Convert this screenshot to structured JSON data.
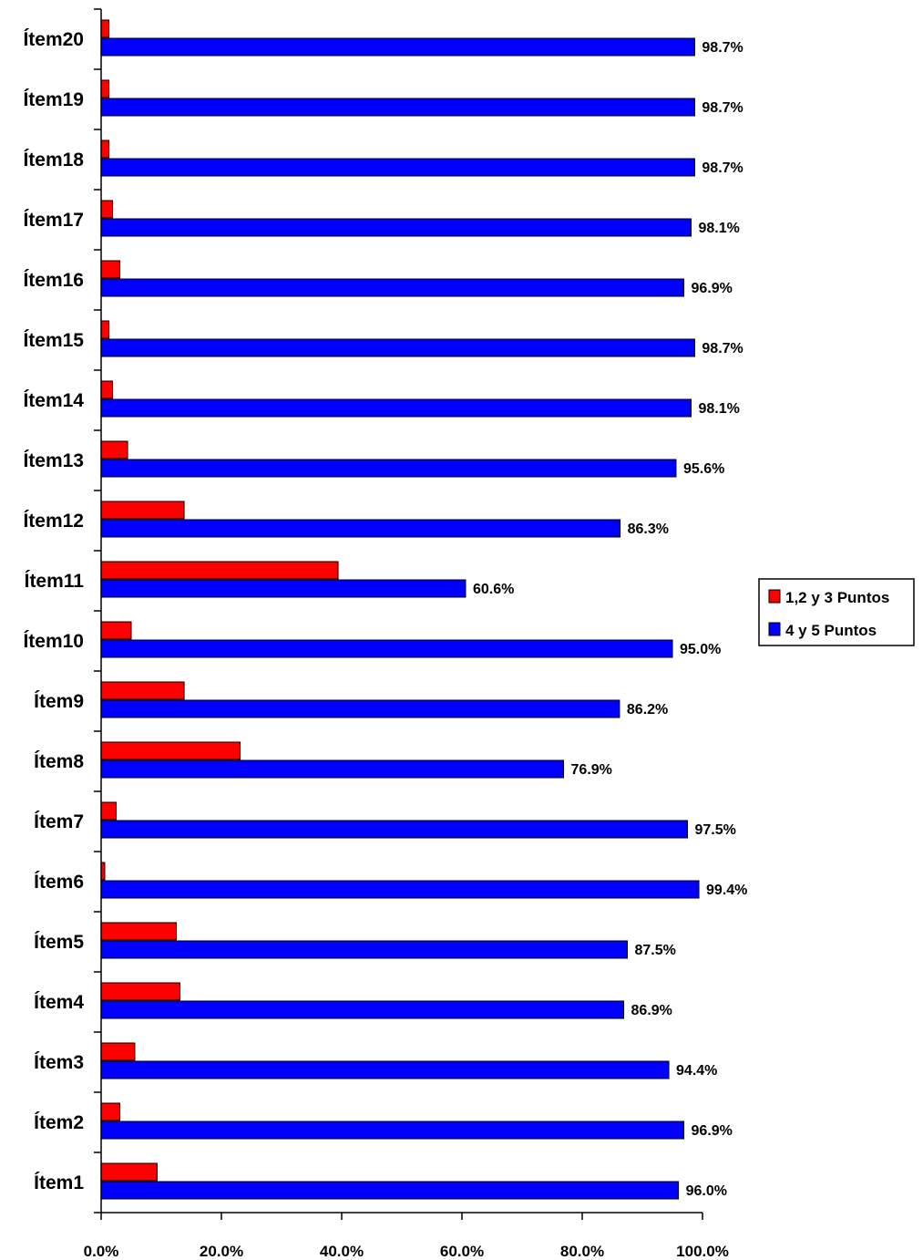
{
  "chart_data": {
    "type": "bar",
    "orientation": "horizontal",
    "categories": [
      "Ítem1",
      "Ítem2",
      "Ítem3",
      "Ítem4",
      "Ítem5",
      "Ítem6",
      "Ítem7",
      "Ítem8",
      "Ítem9",
      "Ítem10",
      "Ítem11",
      "Ítem12",
      "Ítem13",
      "Ítem14",
      "Ítem15",
      "Ítem16",
      "Ítem17",
      "Ítem18",
      "Ítem19",
      "Ítem20"
    ],
    "series": [
      {
        "name": "1,2 y 3 Puntos",
        "color": "#ff0000",
        "values": [
          9.3,
          3.1,
          5.6,
          13.1,
          12.5,
          0.6,
          2.5,
          23.1,
          13.8,
          5.0,
          39.4,
          13.8,
          4.4,
          1.9,
          1.3,
          3.1,
          1.9,
          1.3,
          1.3,
          1.3
        ]
      },
      {
        "name": "4 y 5 Puntos",
        "color": "#0000ff",
        "values": [
          96.0,
          96.9,
          94.4,
          86.9,
          87.5,
          99.4,
          97.5,
          76.9,
          86.2,
          95.0,
          60.6,
          86.3,
          95.6,
          98.1,
          98.7,
          96.9,
          98.1,
          98.7,
          98.7,
          98.7
        ],
        "labels": [
          "96.0%",
          "96.9%",
          "94.4%",
          "86.9%",
          "87.5%",
          "99.4%",
          "97.5%",
          "76.9%",
          "86.2%",
          "95.0%",
          "60.6%",
          "86.3%",
          "95.6%",
          "98.1%",
          "98.7%",
          "96.9%",
          "98.1%",
          "98.7%",
          "98.7%",
          "98.7%"
        ]
      }
    ],
    "x_ticks": [
      "0.0%",
      "20.0%",
      "40.0%",
      "60.0%",
      "80.0%",
      "100.0%"
    ],
    "xlim": [
      0,
      100
    ],
    "grid": false,
    "legend_position": "right"
  }
}
